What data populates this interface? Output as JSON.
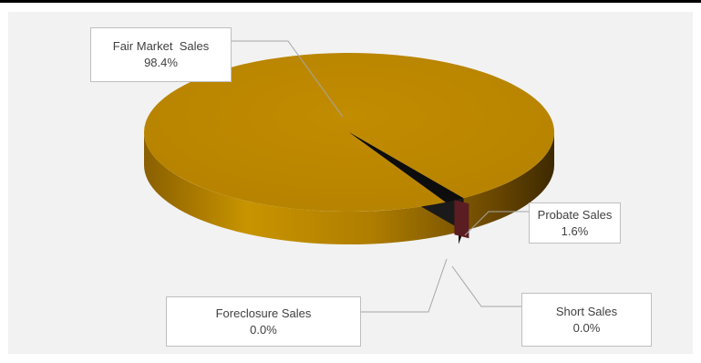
{
  "chart_data": {
    "type": "pie",
    "title": "",
    "slices": [
      {
        "label": "Fair Market  Sales",
        "value": 98.4,
        "value_label": "98.4%",
        "color": "#c08a00"
      },
      {
        "label": "Probate Sales",
        "value": 1.6,
        "value_label": "1.6%",
        "color": "#0d0d0d"
      },
      {
        "label": "Short Sales",
        "value": 0.0,
        "value_label": "0.0%",
        "color": "#0d0d0d"
      },
      {
        "label": "Foreclosure Sales",
        "value": 0.0,
        "value_label": "0.0%",
        "color": "#5a1d22"
      }
    ],
    "three_d": true,
    "legend": "none",
    "data_labels": "callouts"
  }
}
